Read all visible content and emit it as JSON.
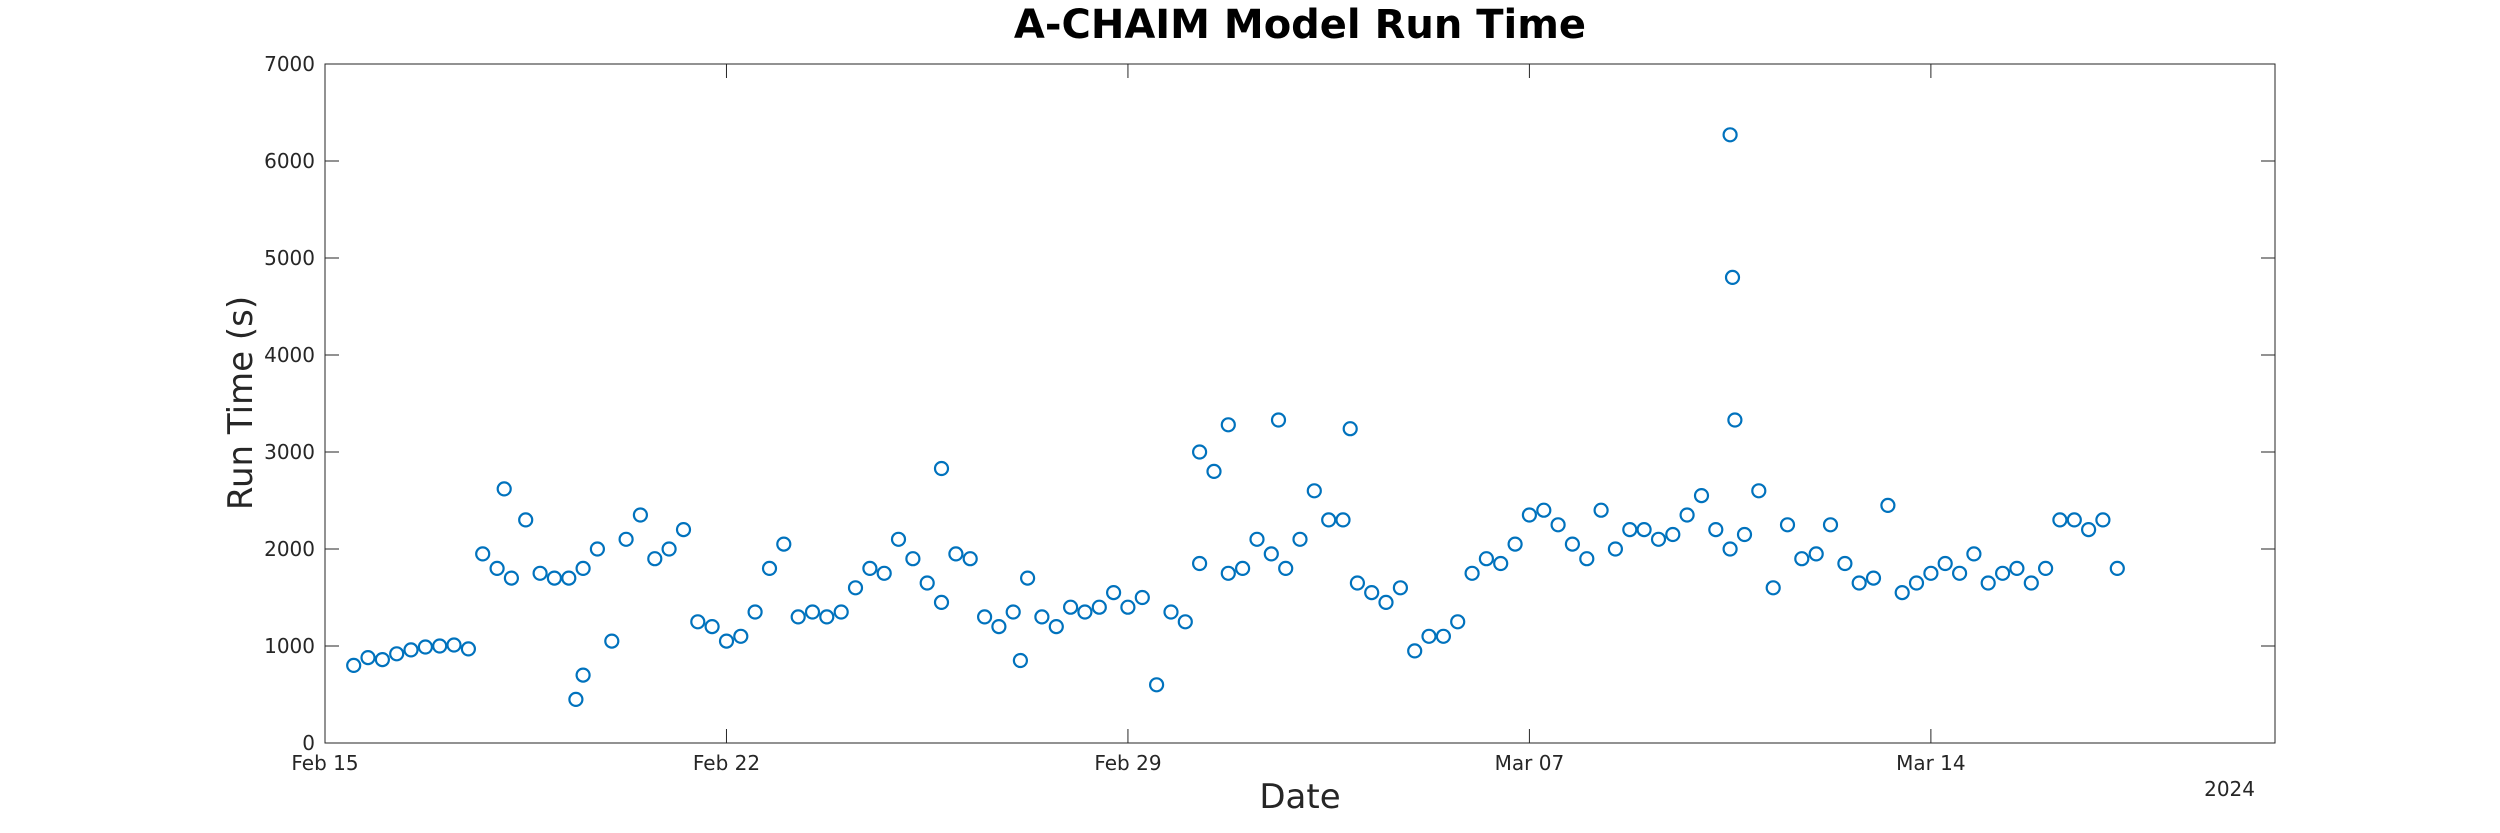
{
  "chart_data": {
    "type": "scatter",
    "title": "A-CHAIM Model Run Time",
    "xlabel": "Date",
    "ylabel": "Run Time (s)",
    "year_label": "2024",
    "xlim": [
      "2024-02-15",
      "2024-03-20"
    ],
    "ylim": [
      0,
      7000
    ],
    "x_ticks": [
      {
        "date": "2024-02-15",
        "label": "Feb 15"
      },
      {
        "date": "2024-02-22",
        "label": "Feb 22"
      },
      {
        "date": "2024-02-29",
        "label": "Feb 29"
      },
      {
        "date": "2024-03-07",
        "label": "Mar 07"
      },
      {
        "date": "2024-03-14",
        "label": "Mar 14"
      }
    ],
    "y_ticks": [
      0,
      1000,
      2000,
      3000,
      4000,
      5000,
      6000,
      7000
    ],
    "grid": false,
    "marker_color": "#0072BD",
    "series": [
      {
        "x": [
          "2024-02-15 12:00",
          "2024-02-15 18:00",
          "2024-02-16 00:00",
          "2024-02-16 06:00",
          "2024-02-16 12:00",
          "2024-02-16 18:00",
          "2024-02-17 00:00",
          "2024-02-17 06:00",
          "2024-02-17 12:00",
          "2024-02-17 18:00",
          "2024-02-18 00:00",
          "2024-02-18 06:00",
          "2024-02-18 12:00",
          "2024-02-18 18:00",
          "2024-02-19 00:00",
          "2024-02-19 06:00",
          "2024-02-19 12:00",
          "2024-02-19 18:00",
          "2024-02-20 00:00",
          "2024-02-20 06:00",
          "2024-02-20 12:00",
          "2024-02-20 18:00",
          "2024-02-21 00:00",
          "2024-02-21 06:00",
          "2024-02-21 12:00",
          "2024-02-21 18:00",
          "2024-02-22 00:00",
          "2024-02-22 06:00",
          "2024-02-22 12:00",
          "2024-02-22 18:00",
          "2024-02-23 00:00",
          "2024-02-23 06:00",
          "2024-02-23 12:00",
          "2024-02-23 18:00",
          "2024-02-24 00:00",
          "2024-02-24 06:00",
          "2024-02-24 12:00",
          "2024-02-24 18:00",
          "2024-02-25 00:00",
          "2024-02-25 06:00",
          "2024-02-25 12:00",
          "2024-02-25 18:00",
          "2024-02-26 00:00",
          "2024-02-26 06:00",
          "2024-02-26 12:00",
          "2024-02-26 18:00",
          "2024-02-27 00:00",
          "2024-02-27 06:00",
          "2024-02-27 12:00",
          "2024-02-27 18:00",
          "2024-02-28 00:00",
          "2024-02-28 06:00",
          "2024-02-28 12:00",
          "2024-02-28 18:00",
          "2024-02-29 00:00",
          "2024-02-29 06:00",
          "2024-02-29 12:00",
          "2024-02-29 18:00",
          "2024-03-01 00:00",
          "2024-03-01 06:00",
          "2024-03-01 12:00",
          "2024-03-01 18:00",
          "2024-03-02 00:00",
          "2024-03-02 06:00",
          "2024-03-02 12:00",
          "2024-03-02 18:00",
          "2024-03-03 00:00",
          "2024-03-03 06:00",
          "2024-03-03 12:00",
          "2024-03-03 18:00",
          "2024-03-04 00:00",
          "2024-03-04 06:00",
          "2024-03-04 12:00",
          "2024-03-04 18:00",
          "2024-03-05 00:00",
          "2024-03-05 06:00",
          "2024-03-05 12:00",
          "2024-03-05 18:00",
          "2024-03-06 00:00",
          "2024-03-06 06:00",
          "2024-03-06 12:00",
          "2024-03-06 18:00",
          "2024-03-07 00:00",
          "2024-03-07 06:00",
          "2024-03-07 12:00",
          "2024-03-07 18:00",
          "2024-03-08 00:00",
          "2024-03-08 06:00",
          "2024-03-08 12:00",
          "2024-03-08 18:00",
          "2024-03-09 00:00",
          "2024-03-09 06:00",
          "2024-03-09 12:00",
          "2024-03-09 18:00",
          "2024-03-10 00:00",
          "2024-03-10 06:00",
          "2024-03-10 12:00",
          "2024-03-10 18:00",
          "2024-03-11 00:00",
          "2024-03-11 06:00",
          "2024-03-11 12:00",
          "2024-03-11 18:00",
          "2024-03-12 00:00",
          "2024-03-12 06:00",
          "2024-03-12 12:00",
          "2024-03-12 18:00",
          "2024-03-13 00:00",
          "2024-03-13 06:00",
          "2024-03-13 12:00",
          "2024-03-13 18:00",
          "2024-03-14 00:00",
          "2024-03-14 06:00",
          "2024-03-14 12:00",
          "2024-03-14 18:00",
          "2024-03-15 00:00",
          "2024-03-15 06:00",
          "2024-03-15 12:00",
          "2024-03-15 18:00",
          "2024-03-16 00:00",
          "2024-03-16 06:00",
          "2024-03-16 12:00",
          "2024-03-16 18:00",
          "2024-03-17 00:00",
          "2024-03-17 06:00",
          "2024-03-10 12:00",
          "2024-03-10 13:00",
          "2024-03-10 14:00",
          "2024-02-18 03:00",
          "2024-02-19 09:00",
          "2024-02-27 03:00",
          "2024-02-25 18:00",
          "2024-03-01 18:00",
          "2024-03-02 15:00",
          "2024-03-03 21:00",
          "2024-03-01 06:00",
          "2024-02-19 12:00"
        ],
        "y": [
          800,
          880,
          860,
          920,
          960,
          990,
          1000,
          1010,
          970,
          1950,
          1800,
          1700,
          2300,
          1750,
          1700,
          1700,
          1800,
          2000,
          1050,
          2100,
          2350,
          1900,
          2000,
          2200,
          1250,
          1200,
          1050,
          1100,
          1350,
          1800,
          2050,
          1300,
          1350,
          1300,
          1350,
          1600,
          1800,
          1750,
          2100,
          1900,
          1650,
          1450,
          1950,
          1900,
          1300,
          1200,
          1350,
          1700,
          1300,
          1200,
          1400,
          1350,
          1400,
          1550,
          1400,
          1500,
          600,
          1350,
          1250,
          1850,
          2800,
          1750,
          1800,
          2100,
          1950,
          1800,
          2100,
          2600,
          2300,
          2300,
          1650,
          1550,
          1450,
          1600,
          950,
          1100,
          1100,
          1250,
          1750,
          1900,
          1850,
          2050,
          2350,
          2400,
          2250,
          2050,
          1900,
          2400,
          2000,
          2200,
          2200,
          2100,
          2150,
          2350,
          2550,
          2200,
          2000,
          2150,
          2600,
          1600,
          2250,
          1900,
          1950,
          2250,
          1850,
          1650,
          1700,
          2450,
          1550,
          1650,
          1750,
          1850,
          1750,
          1950,
          1650,
          1750,
          1800,
          1650,
          1800,
          2300,
          2300,
          2200,
          2300,
          1800,
          6270,
          4800,
          3330,
          2620,
          450,
          850,
          2830,
          3280,
          3330,
          3240,
          3000,
          700
        ]
      }
    ]
  }
}
